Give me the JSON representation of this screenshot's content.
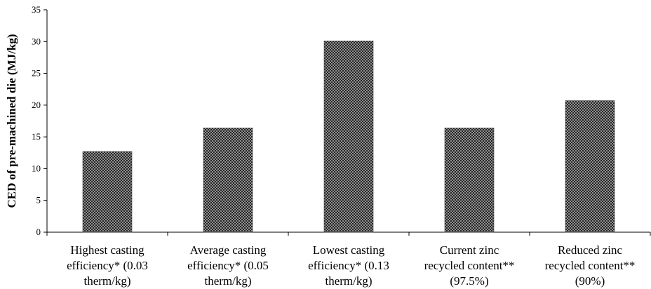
{
  "chart_data": {
    "type": "bar",
    "ylabel": "CED of pre-machined die (MJ/kg)",
    "ylim": [
      0,
      35
    ],
    "yticks": [
      0,
      5,
      10,
      15,
      20,
      25,
      30,
      35
    ],
    "grid": false,
    "bar_fill": "checkered pattern (dark gray/black)",
    "categories": [
      [
        "Highest casting",
        "efficiency* (0.03",
        "therm/kg)"
      ],
      [
        "Average casting",
        "efficiency* (0.05",
        "therm/kg)"
      ],
      [
        "Lowest casting",
        "efficiency* (0.13",
        "therm/kg)"
      ],
      [
        "Current zinc",
        "recycled content**",
        "(97.5%)"
      ],
      [
        "Reduced zinc",
        "recycled content**",
        "(90%)"
      ]
    ],
    "values": [
      12.7,
      16.4,
      30.1,
      16.4,
      20.7
    ]
  }
}
